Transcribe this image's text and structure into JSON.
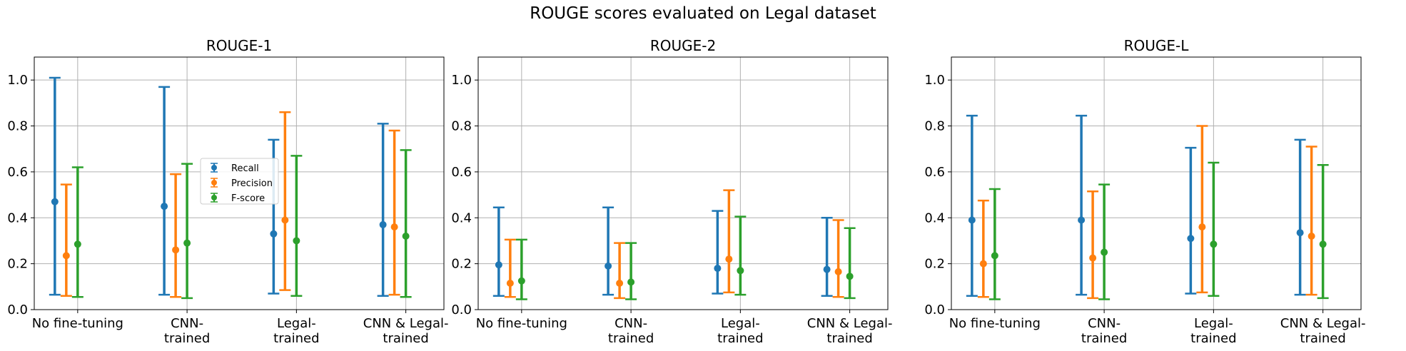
{
  "figure": {
    "title": "ROUGE scores evaluated on Legal dataset"
  },
  "colors": {
    "Recall": "#1f77b4",
    "Precision": "#ff7f0e",
    "F-score": "#2ca02c",
    "grid": "#b0b0b0"
  },
  "chart_data": [
    {
      "type": "errorbar",
      "title": "ROUGE-1",
      "categories": [
        [
          "No fine-tuning"
        ],
        [
          "CNN-",
          "trained"
        ],
        [
          "Legal-",
          "trained"
        ],
        [
          "CNN & Legal-",
          "trained"
        ]
      ],
      "ylim": [
        0,
        1.1
      ],
      "yticks": [
        "0.0",
        "0.2",
        "0.4",
        "0.6",
        "0.8",
        "1.0"
      ],
      "grid": true,
      "legend": {
        "placement": "center",
        "entries": [
          "Recall",
          "Precision",
          "F-score"
        ]
      },
      "series": [
        {
          "name": "Recall",
          "values": [
            0.47,
            0.45,
            0.33,
            0.37
          ],
          "lower": [
            0.065,
            0.065,
            0.07,
            0.06
          ],
          "upper": [
            1.01,
            0.97,
            0.74,
            0.81
          ]
        },
        {
          "name": "Precision",
          "values": [
            0.235,
            0.26,
            0.39,
            0.36
          ],
          "lower": [
            0.06,
            0.055,
            0.085,
            0.065
          ],
          "upper": [
            0.545,
            0.59,
            0.86,
            0.78
          ]
        },
        {
          "name": "F-score",
          "values": [
            0.285,
            0.29,
            0.3,
            0.32
          ],
          "lower": [
            0.055,
            0.05,
            0.06,
            0.055
          ],
          "upper": [
            0.62,
            0.635,
            0.67,
            0.695
          ]
        }
      ]
    },
    {
      "type": "errorbar",
      "title": "ROUGE-2",
      "categories": [
        [
          "No fine-tuning"
        ],
        [
          "CNN-",
          "trained"
        ],
        [
          "Legal-",
          "trained"
        ],
        [
          "CNN & Legal-",
          "trained"
        ]
      ],
      "ylim": [
        0,
        1.1
      ],
      "yticks": [
        "0.0",
        "0.2",
        "0.4",
        "0.6",
        "0.8",
        "1.0"
      ],
      "grid": true,
      "series": [
        {
          "name": "Recall",
          "values": [
            0.195,
            0.19,
            0.18,
            0.175
          ],
          "lower": [
            0.06,
            0.065,
            0.07,
            0.06
          ],
          "upper": [
            0.445,
            0.445,
            0.43,
            0.4
          ]
        },
        {
          "name": "Precision",
          "values": [
            0.115,
            0.115,
            0.22,
            0.165
          ],
          "lower": [
            0.055,
            0.05,
            0.075,
            0.055
          ],
          "upper": [
            0.305,
            0.29,
            0.52,
            0.39
          ]
        },
        {
          "name": "F-score",
          "values": [
            0.125,
            0.12,
            0.17,
            0.145
          ],
          "lower": [
            0.045,
            0.045,
            0.065,
            0.05
          ],
          "upper": [
            0.305,
            0.29,
            0.405,
            0.355
          ]
        }
      ]
    },
    {
      "type": "errorbar",
      "title": "ROUGE-L",
      "categories": [
        [
          "No fine-tuning"
        ],
        [
          "CNN-",
          "trained"
        ],
        [
          "Legal-",
          "trained"
        ],
        [
          "CNN & Legal-",
          "trained"
        ]
      ],
      "ylim": [
        0,
        1.1
      ],
      "yticks": [
        "0.0",
        "0.2",
        "0.4",
        "0.6",
        "0.8",
        "1.0"
      ],
      "grid": true,
      "series": [
        {
          "name": "Recall",
          "values": [
            0.39,
            0.39,
            0.31,
            0.335
          ],
          "lower": [
            0.06,
            0.065,
            0.07,
            0.065
          ],
          "upper": [
            0.845,
            0.845,
            0.705,
            0.74
          ]
        },
        {
          "name": "Precision",
          "values": [
            0.2,
            0.225,
            0.36,
            0.32
          ],
          "lower": [
            0.055,
            0.05,
            0.075,
            0.065
          ],
          "upper": [
            0.475,
            0.515,
            0.8,
            0.71
          ]
        },
        {
          "name": "F-score",
          "values": [
            0.235,
            0.25,
            0.285,
            0.285
          ],
          "lower": [
            0.045,
            0.045,
            0.06,
            0.05
          ],
          "upper": [
            0.525,
            0.545,
            0.64,
            0.63
          ]
        }
      ]
    }
  ]
}
